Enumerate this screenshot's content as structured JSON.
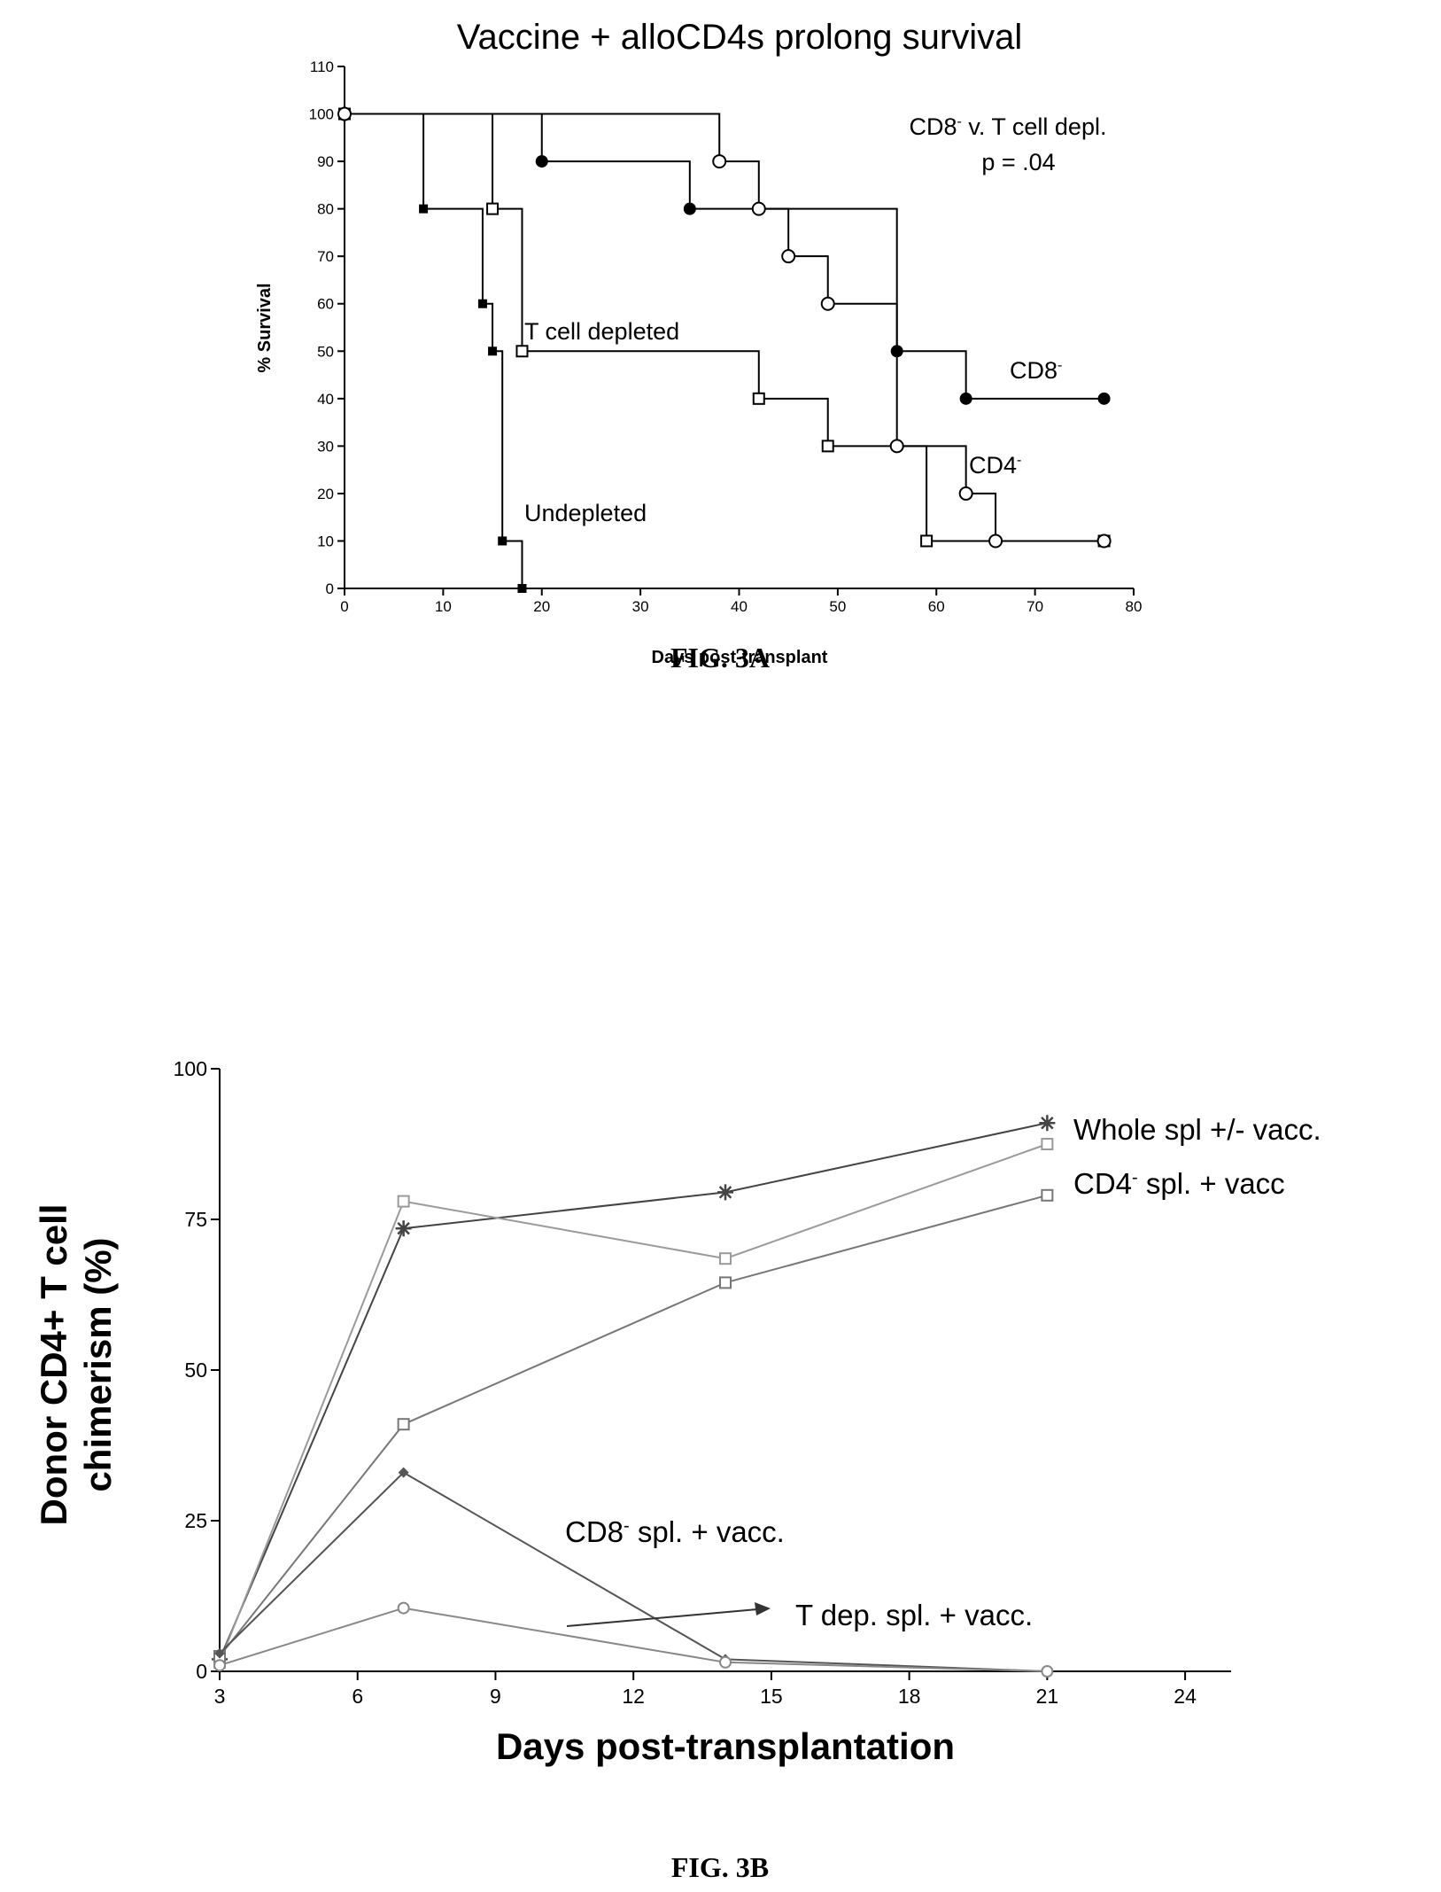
{
  "chart_data": [
    {
      "type": "line",
      "subtype": "kaplan-meier",
      "title": "Vaccine + alloCD4s prolong survival",
      "xlabel": "Days post-transplant",
      "ylabel": "% Survival",
      "xlim": [
        0,
        80
      ],
      "ylim": [
        0,
        110
      ],
      "xticks": [
        "0",
        "10",
        "20",
        "30",
        "40",
        "50",
        "60",
        "70",
        "80"
      ],
      "yticks": [
        "0",
        "10",
        "20",
        "30",
        "40",
        "50",
        "60",
        "70",
        "80",
        "90",
        "100",
        "110"
      ],
      "grid": false,
      "legend": "none",
      "annotations": [
        {
          "label_main": "CD8",
          "label_sup": "-",
          "label_rest": " v. T cell depl."
        },
        {
          "text": "p = .04"
        }
      ],
      "caption": "FIG. 3A",
      "series": [
        {
          "name": "Undepleted",
          "marker": "filled-small-square",
          "steps": [
            [
              0,
              100
            ],
            [
              8,
              80
            ],
            [
              14,
              60
            ],
            [
              15,
              50
            ],
            [
              16,
              10
            ],
            [
              18,
              0
            ]
          ]
        },
        {
          "name": "T cell depleted",
          "marker": "open-square",
          "steps": [
            [
              0,
              100
            ],
            [
              15,
              80
            ],
            [
              18,
              50
            ],
            [
              42,
              40
            ],
            [
              49,
              30
            ],
            [
              59,
              10
            ],
            [
              77,
              10
            ]
          ]
        },
        {
          "name": "CD8",
          "name_sup": "-",
          "marker": "filled-circle",
          "steps": [
            [
              0,
              100
            ],
            [
              20,
              90
            ],
            [
              35,
              80
            ],
            [
              56,
              50
            ],
            [
              63,
              40
            ],
            [
              77,
              40
            ]
          ]
        },
        {
          "name": "CD4",
          "name_sup": "-",
          "marker": "open-circle",
          "steps": [
            [
              0,
              100
            ],
            [
              38,
              90
            ],
            [
              42,
              80
            ],
            [
              45,
              70
            ],
            [
              49,
              60
            ],
            [
              56,
              30
            ],
            [
              63,
              20
            ],
            [
              66,
              10
            ],
            [
              77,
              10
            ]
          ]
        }
      ]
    },
    {
      "type": "line",
      "title": "",
      "xlabel": "Days post-transplantation",
      "ylabel_line1": "Donor CD4+ T cell",
      "ylabel_line2": "chimerism (%)",
      "xlim": [
        3,
        25
      ],
      "ylim": [
        0,
        100
      ],
      "xticks": [
        "3",
        "6",
        "9",
        "12",
        "15",
        "18",
        "21",
        "24"
      ],
      "yticks": [
        "0",
        "25",
        "50",
        "75",
        "100"
      ],
      "grid": false,
      "legend": "none",
      "caption": "FIG. 3B",
      "series": [
        {
          "name": "Whole spl +/- vacc.",
          "marker": "star",
          "color": "#444444",
          "x": [
            3,
            7,
            14,
            21
          ],
          "y": [
            2,
            73.5,
            79.5,
            91
          ]
        },
        {
          "name": "",
          "marker": "open-square",
          "color": "#9a9a9a",
          "x": [
            3,
            7,
            14,
            21
          ],
          "y": [
            1.5,
            78,
            68.5,
            87.5
          ]
        },
        {
          "name": "CD4",
          "name_sup": "-",
          "name_rest": " spl. + vacc",
          "marker": "open-square",
          "color": "#777777",
          "x": [
            3,
            7,
            14,
            21
          ],
          "y": [
            2.5,
            41,
            64.5,
            79
          ]
        },
        {
          "name": "CD8",
          "name_sup": "-",
          "name_rest": " spl. + vacc.",
          "marker": "diamond",
          "color": "#555555",
          "x": [
            3,
            7,
            14,
            21
          ],
          "y": [
            3,
            33,
            2,
            0
          ]
        },
        {
          "name": "T dep. spl. + vacc.",
          "marker": "open-circle",
          "color": "#888888",
          "x": [
            3,
            7,
            14,
            21
          ],
          "y": [
            1,
            10.5,
            1.5,
            0
          ]
        }
      ]
    }
  ]
}
